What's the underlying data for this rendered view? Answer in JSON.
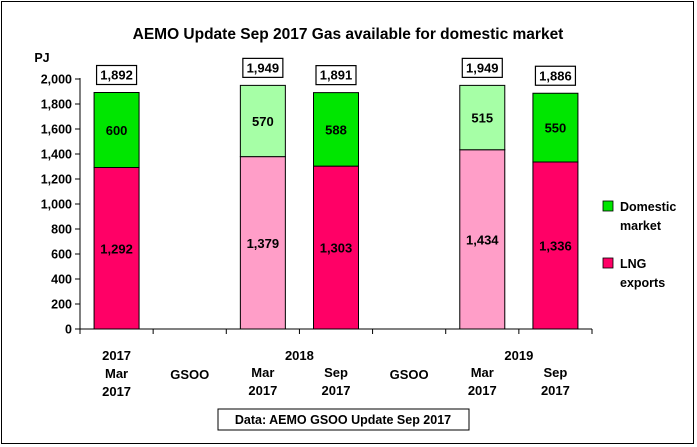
{
  "chart_data": {
    "type": "bar",
    "stacked": true,
    "title": "AEMO Update Sep 2017 Gas available for domestic market",
    "ylabel": "PJ",
    "ylim": [
      0,
      2000
    ],
    "yticks": [
      "0",
      "200",
      "400",
      "600",
      "800",
      "1,000",
      "1,200",
      "1,400",
      "1,600",
      "1,800",
      "2,000"
    ],
    "grid": false,
    "legend_position": "right",
    "source_note": "Data: AEMO GSOO Update Sep 2017",
    "slots": [
      {
        "lines": [
          "2017",
          "Mar",
          "2017"
        ],
        "bar": 0
      },
      {
        "lines": [
          "GSOO"
        ],
        "bar": null
      },
      {
        "lines": [
          "Mar",
          "2017"
        ],
        "bar": 1
      },
      {
        "lines": [
          "Sep",
          "2017"
        ],
        "bar": 2
      },
      {
        "lines": [
          "GSOO"
        ],
        "bar": null
      },
      {
        "lines": [
          "Mar",
          "2017"
        ],
        "bar": 3
      },
      {
        "lines": [
          "Sep",
          "2017"
        ],
        "bar": 4
      }
    ],
    "group_labels": [
      {
        "label": "2018",
        "slots": [
          2,
          3
        ]
      },
      {
        "label": "2019",
        "slots": [
          5,
          6
        ]
      }
    ],
    "bars": [
      {
        "lng": 1292,
        "domestic": 600,
        "total": 1892,
        "lng_label": "1,292",
        "domestic_label": "600",
        "total_label": "1,892",
        "style": "sep"
      },
      {
        "lng": 1379,
        "domestic": 570,
        "total": 1949,
        "lng_label": "1,379",
        "domestic_label": "570",
        "total_label": "1,949",
        "style": "mar"
      },
      {
        "lng": 1303,
        "domestic": 588,
        "total": 1891,
        "lng_label": "1,303",
        "domestic_label": "588",
        "total_label": "1,891",
        "style": "sep"
      },
      {
        "lng": 1434,
        "domestic": 515,
        "total": 1949,
        "lng_label": "1,434",
        "domestic_label": "515",
        "total_label": "1,949",
        "style": "mar"
      },
      {
        "lng": 1336,
        "domestic": 550,
        "total": 1886,
        "lng_label": "1,336",
        "domestic_label": "550",
        "total_label": "1,886",
        "style": "sep"
      }
    ],
    "series": [
      {
        "key": "domestic",
        "name": "Domestic market",
        "legend_lines": [
          "Domestic",
          "market"
        ],
        "color": "#00e600"
      },
      {
        "key": "lng",
        "name": "LNG exports",
        "legend_lines": [
          "LNG",
          "exports"
        ],
        "color": "#ff0066"
      }
    ],
    "colors": {
      "domestic_sep": "#00e600",
      "lng_sep": "#ff0066",
      "domestic_mar": "#a6ffa6",
      "lng_mar": "#ff9ec8"
    }
  }
}
